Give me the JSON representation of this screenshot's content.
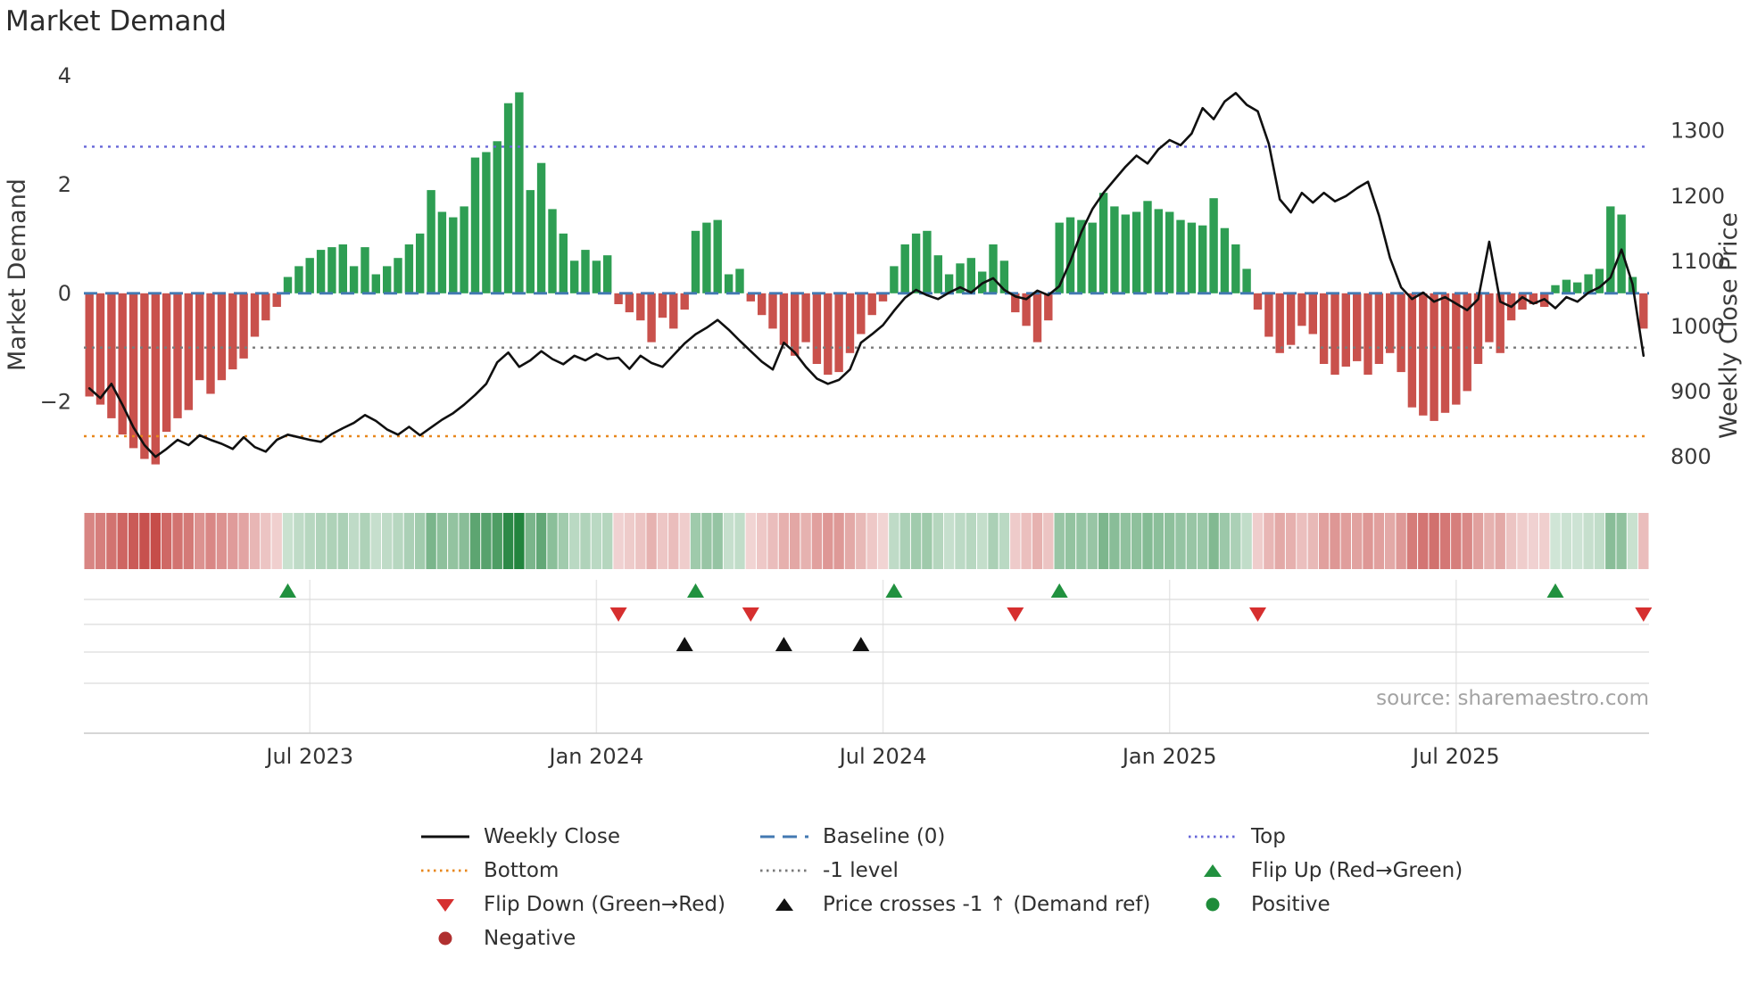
{
  "title": "Market Demand",
  "source": "source: sharemaestro.com",
  "left_axis": {
    "label": "Market Demand",
    "tick_values": [
      4,
      2,
      0,
      -2
    ],
    "tick_labels": [
      "4",
      "2",
      "0",
      "−2"
    ]
  },
  "right_axis": {
    "label": "Weekly Close Price",
    "tick_values": [
      1300,
      1200,
      1100,
      1000,
      900,
      800
    ],
    "tick_labels": [
      "1300",
      "1200",
      "1100",
      "1000",
      "900",
      "800"
    ]
  },
  "x_axis": {
    "tick_labels": [
      "Jul 2023",
      "Jan 2024",
      "Jul 2024",
      "Jan 2025",
      "Jul 2025"
    ],
    "tick_weeks": [
      20,
      46,
      72,
      98,
      124
    ]
  },
  "colors": {
    "bar_positive": "#2e9e53",
    "bar_negative": "#c9514c",
    "line": "#101010",
    "baseline": "#4379b2",
    "top": "#6666d8",
    "bottom": "#e8871c",
    "minus_one": "#7a7a7a",
    "flip_up": "#21913f",
    "flip_down": "#d62f2f",
    "price_cross": "#111111",
    "positive_dot": "#1e8c3a",
    "negative_dot": "#b03030",
    "tick_text": "#3a3a3a",
    "source_text": "#a3a3a3",
    "grid": "#dcdcdc"
  },
  "chart_data": {
    "type": "bar",
    "title": "Market Demand",
    "x_unit": "week",
    "n_weeks": 142,
    "left_ylim": [
      -3.55,
      4.25
    ],
    "right_ylim": [
      755,
      1405
    ],
    "reference_lines": {
      "baseline": 0,
      "minus_one": -1,
      "top": 2.7,
      "bottom": -2.63
    },
    "series": [
      {
        "name": "Market Demand",
        "type": "bar",
        "axis": "left",
        "values": [
          -1.9,
          -2.05,
          -2.3,
          -2.6,
          -2.85,
          -3.05,
          -3.15,
          -2.55,
          -2.3,
          -2.15,
          -1.6,
          -1.85,
          -1.6,
          -1.4,
          -1.2,
          -0.8,
          -0.5,
          -0.25,
          0.3,
          0.5,
          0.65,
          0.8,
          0.85,
          0.9,
          0.5,
          0.85,
          0.35,
          0.5,
          0.65,
          0.9,
          1.1,
          1.9,
          1.5,
          1.4,
          1.6,
          2.5,
          2.6,
          2.8,
          3.5,
          3.7,
          1.9,
          2.4,
          1.55,
          1.1,
          0.6,
          0.8,
          0.6,
          0.7,
          -0.2,
          -0.35,
          -0.5,
          -0.9,
          -0.45,
          -0.65,
          -0.3,
          1.15,
          1.3,
          1.35,
          0.35,
          0.45,
          -0.15,
          -0.4,
          -0.65,
          -0.95,
          -1.15,
          -0.9,
          -1.3,
          -1.5,
          -1.45,
          -1.1,
          -0.75,
          -0.4,
          -0.15,
          0.5,
          0.9,
          1.1,
          1.15,
          0.7,
          0.35,
          0.55,
          0.65,
          0.4,
          0.9,
          0.6,
          -0.35,
          -0.6,
          -0.9,
          -0.5,
          1.3,
          1.4,
          1.35,
          1.3,
          1.85,
          1.6,
          1.45,
          1.5,
          1.7,
          1.55,
          1.5,
          1.35,
          1.3,
          1.25,
          1.75,
          1.2,
          0.9,
          0.45,
          -0.3,
          -0.8,
          -1.1,
          -0.95,
          -0.6,
          -0.75,
          -1.3,
          -1.5,
          -1.35,
          -1.25,
          -1.5,
          -1.3,
          -1.1,
          -1.45,
          -2.1,
          -2.25,
          -2.35,
          -2.2,
          -2.05,
          -1.8,
          -1.3,
          -0.9,
          -1.1,
          -0.5,
          -0.3,
          -0.2,
          -0.25,
          0.15,
          0.25,
          0.2,
          0.35,
          0.45,
          1.6,
          1.45,
          0.3,
          -0.65
        ]
      },
      {
        "name": "Weekly Close",
        "type": "line",
        "axis": "right",
        "values": [
          905,
          890,
          912,
          880,
          845,
          818,
          800,
          812,
          826,
          818,
          833,
          826,
          820,
          812,
          830,
          815,
          808,
          826,
          834,
          830,
          826,
          823,
          835,
          844,
          852,
          864,
          855,
          842,
          834,
          846,
          833,
          845,
          857,
          867,
          880,
          895,
          912,
          945,
          960,
          938,
          948,
          962,
          950,
          942,
          955,
          948,
          958,
          950,
          952,
          935,
          955,
          944,
          938,
          956,
          974,
          988,
          998,
          1010,
          995,
          978,
          962,
          946,
          934,
          975,
          960,
          938,
          920,
          912,
          918,
          934,
          975,
          988,
          1002,
          1024,
          1044,
          1056,
          1048,
          1042,
          1052,
          1060,
          1052,
          1066,
          1074,
          1056,
          1046,
          1042,
          1055,
          1048,
          1062,
          1100,
          1145,
          1180,
          1205,
          1225,
          1245,
          1262,
          1250,
          1272,
          1286,
          1278,
          1296,
          1335,
          1318,
          1345,
          1358,
          1340,
          1330,
          1280,
          1195,
          1175,
          1205,
          1190,
          1205,
          1192,
          1200,
          1212,
          1222,
          1170,
          1105,
          1060,
          1042,
          1052,
          1038,
          1045,
          1035,
          1025,
          1042,
          1130,
          1038,
          1030,
          1045,
          1035,
          1042,
          1028,
          1045,
          1038,
          1052,
          1060,
          1075,
          1118,
          1065,
          955
        ]
      }
    ],
    "heatmap": {
      "derived_from": "Market Demand",
      "note": "color intensity mirrors bar magnitude"
    },
    "markers": {
      "flip_up_weeks": [
        18,
        55,
        73,
        88,
        133
      ],
      "flip_down_weeks": [
        48,
        60,
        84,
        106,
        141
      ],
      "price_cross_up_weeks": [
        54,
        63,
        70
      ]
    }
  },
  "legend": {
    "items": [
      {
        "label": "Weekly Close",
        "symbol": "solid-line",
        "color": "#101010"
      },
      {
        "label": "Baseline (0)",
        "symbol": "dashed-line",
        "color": "#4379b2"
      },
      {
        "label": "Top",
        "symbol": "dotted-line",
        "color": "#6666d8"
      },
      {
        "label": "Bottom",
        "symbol": "dotted-line",
        "color": "#e8871c"
      },
      {
        "label": "-1 level",
        "symbol": "dotted-line",
        "color": "#7a7a7a"
      },
      {
        "label": "Flip Up (Red→Green)",
        "symbol": "triangle-up",
        "color": "#21913f"
      },
      {
        "label": "Flip Down (Green→Red)",
        "symbol": "triangle-down",
        "color": "#d62f2f"
      },
      {
        "label": "Price crosses -1 ↑ (Demand ref)",
        "symbol": "triangle-up",
        "color": "#111111"
      },
      {
        "label": "Positive",
        "symbol": "circle",
        "color": "#1e8c3a"
      },
      {
        "label": "Negative",
        "symbol": "circle",
        "color": "#b03030"
      }
    ]
  }
}
